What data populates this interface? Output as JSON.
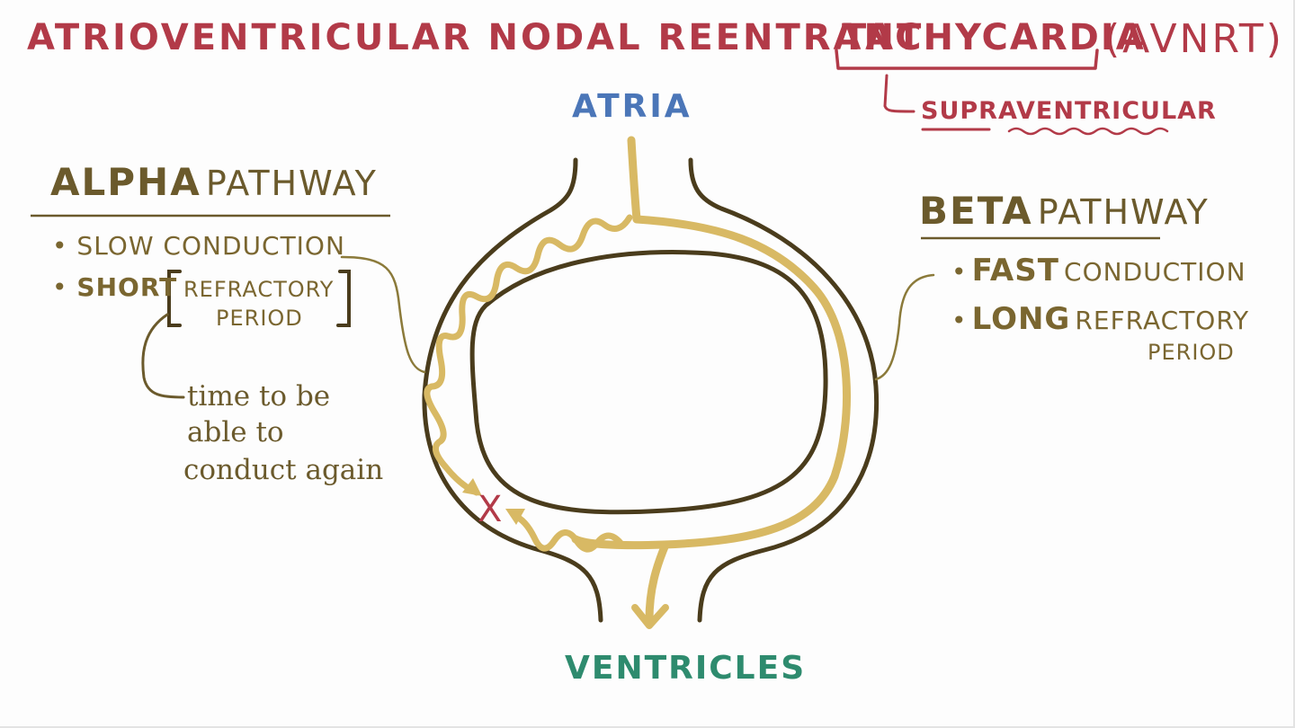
{
  "title": {
    "main": "ATRIOVENTRICULAR NODAL REENTRANT",
    "tachycardia": "TACHYCARDIA",
    "abbrev": "(AVNRT)",
    "subtype": "SUPRAVENTRICULAR"
  },
  "labels": {
    "atria": "ATRIA",
    "ventricles": "VENTRICLES"
  },
  "alpha": {
    "name": "ALPHA",
    "suffix": "PATHWAY",
    "bullet1_dot": "•",
    "bullet1": "SLOW CONDUCTION",
    "bullet2_dot": "•",
    "bullet2_lead": "SHORT",
    "bullet2_refractory": "REFRACTORY",
    "bullet2_period": "PERIOD",
    "note_line1": "time to be",
    "note_line2": "able to",
    "note_line3": "conduct again"
  },
  "beta": {
    "name": "BETA",
    "suffix": "PATHWAY",
    "bullet1_dot": "•",
    "bullet1_lead": "FAST",
    "bullet1_rest": "CONDUCTION",
    "bullet2_dot": "•",
    "bullet2_lead": "LONG",
    "bullet2_refractory": "REFRACTORY",
    "bullet2_period": "PERIOD"
  },
  "block_mark": "X",
  "colors": {
    "title": "#b23a48",
    "atria": "#4b76b8",
    "ventricles": "#2e8b6e",
    "outline": "#4a3c1c",
    "impulse": "#d8b964",
    "text": "#7a6630",
    "block": "#b23a48"
  }
}
